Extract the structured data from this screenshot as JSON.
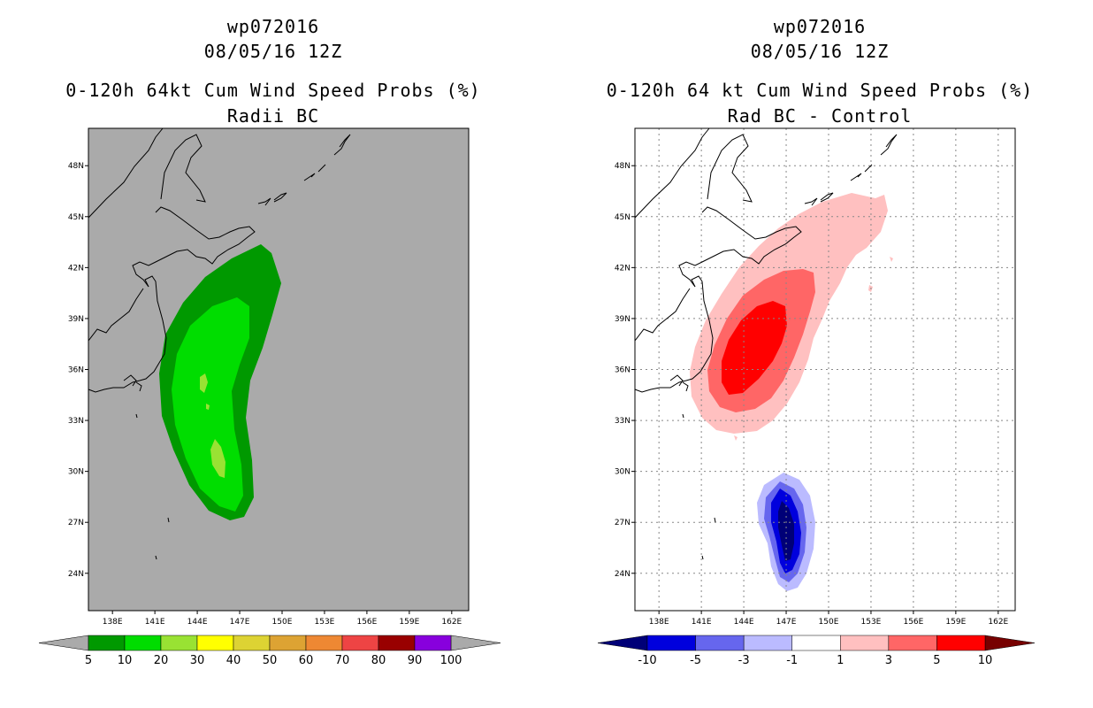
{
  "chart_data": [
    {
      "type": "heatmap",
      "storm_id": "wp072016",
      "datetime": "08/05/16 12Z",
      "title": "0-120h 64kt Cum Wind Speed Probs (%)",
      "subtitle": "Radii BC",
      "x_ticks": [
        "138E",
        "141E",
        "144E",
        "147E",
        "150E",
        "153E",
        "156E",
        "159E",
        "162E"
      ],
      "y_ticks": [
        "48N",
        "45N",
        "42N",
        "39N",
        "36N",
        "33N",
        "30N",
        "27N",
        "24N"
      ],
      "xlim": [
        136.3,
        163.2
      ],
      "ylim": [
        21.8,
        50.2
      ],
      "grid": false,
      "background": "#aaaaaa",
      "colorbar": {
        "labels": [
          "5",
          "10",
          "20",
          "30",
          "40",
          "50",
          "60",
          "70",
          "80",
          "90",
          "100"
        ],
        "colors": [
          "#009900",
          "#00dd00",
          "#99e233",
          "#ffff00",
          "#ddd333",
          "#dda333",
          "#ee8833",
          "#ee4444",
          "#990000",
          "#8800dd"
        ],
        "end_colors": [
          "#aaaaaa",
          "#aaaaaa"
        ]
      }
    },
    {
      "type": "heatmap",
      "storm_id": "wp072016",
      "datetime": "08/05/16 12Z",
      "title": "0-120h 64 kt Cum Wind Speed Probs (%)",
      "subtitle": "Rad BC - Control",
      "x_ticks": [
        "138E",
        "141E",
        "144E",
        "147E",
        "150E",
        "153E",
        "156E",
        "159E",
        "162E"
      ],
      "y_ticks": [
        "48N",
        "45N",
        "42N",
        "39N",
        "36N",
        "33N",
        "30N",
        "27N",
        "24N"
      ],
      "xlim": [
        136.3,
        163.2
      ],
      "ylim": [
        21.8,
        50.2
      ],
      "grid": true,
      "background": "#ffffff",
      "colorbar": {
        "labels": [
          "-10",
          "-5",
          "-3",
          "-1",
          "1",
          "3",
          "5",
          "10"
        ],
        "colors": [
          "#0000dd",
          "#6666ee",
          "#bbbbff",
          "#ffffff",
          "#ffc0c0",
          "#ff6666",
          "#ff0000"
        ],
        "end_colors": [
          "#000077",
          "#770000"
        ]
      }
    }
  ]
}
